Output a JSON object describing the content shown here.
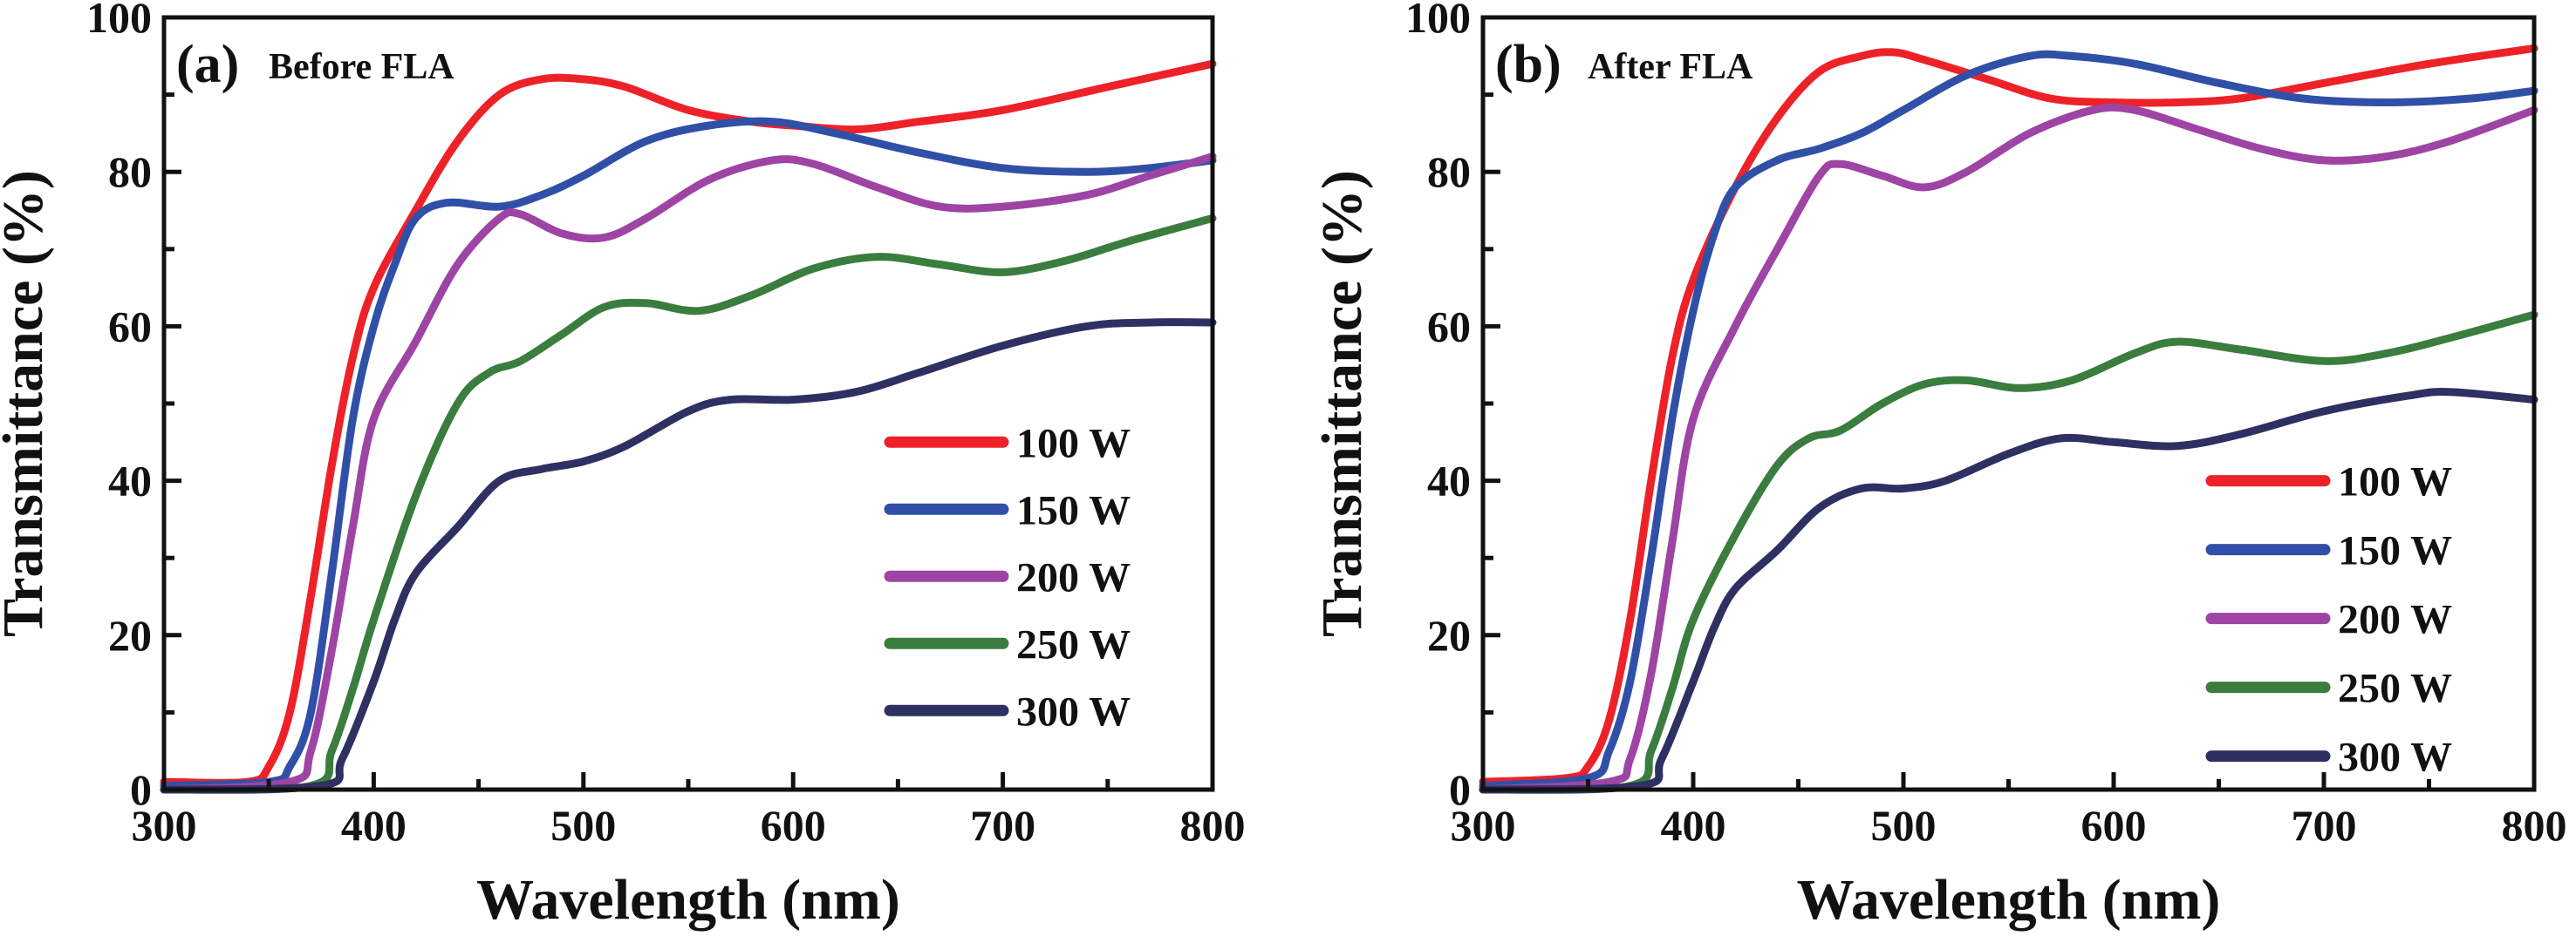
{
  "figure": {
    "colors": {
      "100 W": "#ED2228",
      "150 W": "#3050A8",
      "200 W": "#9E44A4",
      "250 W": "#3A7D3E",
      "300 W": "#2F3062"
    }
  },
  "chart_data": [
    {
      "type": "line",
      "panel_label": "(a)",
      "title": "Before FLA",
      "xlabel": "Wavelength (nm)",
      "ylabel": "Transmittance (%)",
      "xlim": [
        300,
        800
      ],
      "ylim": [
        0,
        100
      ],
      "xticks": [
        300,
        400,
        500,
        600,
        700,
        800
      ],
      "yticks": [
        0,
        20,
        40,
        60,
        80,
        100
      ],
      "grid": false,
      "legend_position": "bottom-right",
      "series": [
        {
          "name": "100 W",
          "x": [
            300,
            340,
            350,
            360,
            370,
            380,
            390,
            400,
            420,
            440,
            460,
            480,
            500,
            520,
            550,
            580,
            600,
            630,
            660,
            700,
            750,
            800
          ],
          "y": [
            1,
            1,
            3,
            10,
            25,
            42,
            56,
            65,
            75,
            84,
            90,
            92,
            92,
            91,
            88,
            86.5,
            86,
            85.5,
            86.5,
            88,
            91,
            94
          ]
        },
        {
          "name": "150 W",
          "x": [
            300,
            350,
            360,
            370,
            380,
            390,
            400,
            410,
            420,
            435,
            460,
            480,
            500,
            530,
            560,
            590,
            620,
            660,
            700,
            740,
            770,
            800
          ],
          "y": [
            0.5,
            1,
            3,
            10,
            28,
            48,
            60,
            68,
            74,
            76,
            75.5,
            77,
            79.5,
            84,
            86,
            86.5,
            85,
            82.5,
            80.5,
            80,
            80.5,
            81.5
          ]
        },
        {
          "name": "200 W",
          "x": [
            300,
            360,
            370,
            380,
            390,
            400,
            420,
            440,
            460,
            470,
            490,
            510,
            530,
            560,
            590,
            610,
            640,
            670,
            700,
            740,
            770,
            800
          ],
          "y": [
            0,
            1,
            5,
            18,
            34,
            48,
            58,
            68,
            74,
            74.5,
            72,
            71.5,
            74,
            79,
            81.5,
            81,
            78,
            75.5,
            75.5,
            77,
            79.5,
            82
          ]
        },
        {
          "name": "250 W",
          "x": [
            300,
            370,
            380,
            390,
            400,
            420,
            440,
            455,
            470,
            490,
            510,
            530,
            555,
            580,
            610,
            640,
            670,
            700,
            730,
            760,
            800
          ],
          "y": [
            0,
            0.5,
            5,
            13,
            22,
            38,
            50,
            54,
            55.5,
            59,
            62.5,
            63,
            62,
            64,
            67.5,
            69,
            68,
            67,
            68.5,
            71,
            74
          ]
        },
        {
          "name": "300 W",
          "x": [
            300,
            375,
            385,
            400,
            410,
            420,
            440,
            460,
            480,
            500,
            520,
            550,
            570,
            600,
            630,
            660,
            700,
            740,
            770,
            800
          ],
          "y": [
            0,
            0.5,
            4,
            14,
            22,
            28,
            34,
            40,
            41.5,
            42.5,
            44.5,
            49,
            50.5,
            50.5,
            51.5,
            54,
            57.5,
            60,
            60.5,
            60.5
          ]
        }
      ]
    },
    {
      "type": "line",
      "panel_label": "(b)",
      "title": "After FLA",
      "xlabel": "Wavelength (nm)",
      "ylabel": "Transmittance (%)",
      "xlim": [
        300,
        800
      ],
      "ylim": [
        0,
        100
      ],
      "xticks": [
        300,
        400,
        500,
        600,
        700,
        800
      ],
      "yticks": [
        0,
        20,
        40,
        60,
        80,
        100
      ],
      "grid": false,
      "legend_position": "bottom-right",
      "series": [
        {
          "name": "100 W",
          "x": [
            300,
            340,
            350,
            360,
            370,
            380,
            390,
            400,
            420,
            440,
            460,
            480,
            495,
            510,
            540,
            570,
            600,
            630,
            660,
            700,
            750,
            800
          ],
          "y": [
            1,
            1.5,
            3,
            9,
            22,
            40,
            56,
            66,
            78,
            87,
            93,
            95,
            95.5,
            94.5,
            92,
            89.5,
            89,
            89,
            89.5,
            91.5,
            94,
            96
          ]
        },
        {
          "name": "150 W",
          "x": [
            300,
            350,
            360,
            370,
            380,
            390,
            400,
            410,
            420,
            440,
            460,
            480,
            500,
            530,
            560,
            580,
            610,
            650,
            690,
            730,
            770,
            800
          ],
          "y": [
            0.5,
            1.5,
            5,
            14,
            30,
            48,
            62,
            72,
            78,
            81.5,
            83,
            85,
            88,
            92.5,
            95,
            95,
            94,
            91.5,
            89.5,
            89,
            89.5,
            90.5
          ]
        },
        {
          "name": "200 W",
          "x": [
            300,
            360,
            370,
            380,
            390,
            400,
            420,
            440,
            460,
            470,
            490,
            510,
            530,
            560,
            590,
            610,
            640,
            670,
            700,
            730,
            760,
            800
          ],
          "y": [
            0,
            1,
            4,
            15,
            32,
            48,
            60,
            70,
            79.5,
            81,
            79.5,
            78,
            80,
            85,
            88,
            88,
            85.5,
            83,
            81.5,
            82,
            84,
            88
          ]
        },
        {
          "name": "250 W",
          "x": [
            300,
            370,
            380,
            390,
            400,
            420,
            440,
            455,
            470,
            490,
            510,
            530,
            555,
            580,
            610,
            630,
            660,
            700,
            730,
            760,
            800
          ],
          "y": [
            0,
            0.5,
            5,
            13,
            22,
            33,
            42,
            45.5,
            46.5,
            50,
            52.5,
            53,
            52,
            53,
            56.5,
            58,
            57,
            55.5,
            56.5,
            58.5,
            61.5
          ]
        },
        {
          "name": "300 W",
          "x": [
            300,
            375,
            385,
            400,
            410,
            420,
            440,
            460,
            480,
            500,
            520,
            550,
            575,
            600,
            630,
            660,
            700,
            740,
            760,
            800
          ],
          "y": [
            0,
            0.5,
            4,
            14,
            21,
            26,
            31,
            36.5,
            39,
            39,
            40,
            43.5,
            45.5,
            45,
            44.5,
            46,
            49,
            51,
            51.5,
            50.5
          ]
        }
      ]
    }
  ]
}
